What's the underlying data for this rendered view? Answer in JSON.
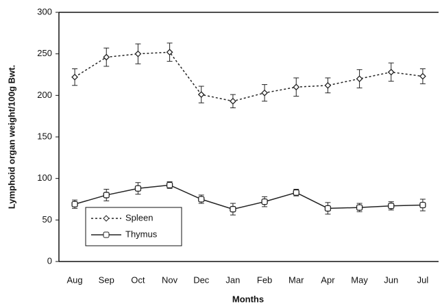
{
  "chart_data": {
    "type": "line",
    "x_label": "Months",
    "y_label": "Lymphoid organ weight/100g Bwt.",
    "categories": [
      "Aug",
      "Sep",
      "Oct",
      "Nov",
      "Dec",
      "Jan",
      "Feb",
      "Mar",
      "Apr",
      "May",
      "Jun",
      "Jul"
    ],
    "series": [
      {
        "name": "Spleen",
        "color": "#222222",
        "dash": "dotted",
        "marker": "diamond",
        "values": [
          222,
          246,
          250,
          252,
          201,
          193,
          203,
          210,
          212,
          220,
          228,
          223
        ],
        "errors": [
          10,
          11,
          12,
          11,
          10,
          8,
          10,
          11,
          9,
          11,
          11,
          9
        ]
      },
      {
        "name": "Thymus",
        "color": "#222222",
        "dash": "solid",
        "marker": "square",
        "values": [
          69,
          80,
          88,
          92,
          75,
          63,
          72,
          83,
          64,
          65,
          67,
          68
        ],
        "errors": [
          5,
          7,
          7,
          4,
          5,
          7,
          6,
          4,
          7,
          5,
          5,
          7
        ]
      }
    ],
    "ylim": [
      0,
      300
    ],
    "yticks": [
      0,
      50,
      100,
      150,
      200,
      250,
      300
    ],
    "legend": "lower-left"
  }
}
